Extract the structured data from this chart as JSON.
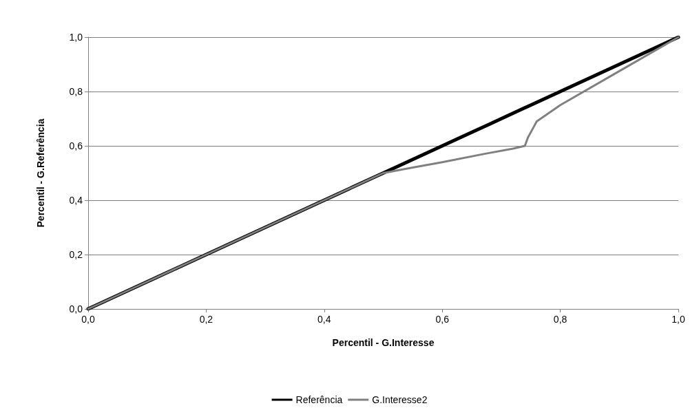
{
  "chart_data": {
    "type": "line",
    "xlabel": "Percentil - G.Interesse",
    "ylabel": "Percentil - G.Referência",
    "xlim": [
      0,
      1
    ],
    "ylim": [
      0,
      1
    ],
    "xticks": [
      {
        "value": 0,
        "label": "0,0"
      },
      {
        "value": 0.2,
        "label": "0,2"
      },
      {
        "value": 0.4,
        "label": "0,4"
      },
      {
        "value": 0.6,
        "label": "0,6"
      },
      {
        "value": 0.8,
        "label": "0,8"
      },
      {
        "value": 1,
        "label": "1,0"
      }
    ],
    "yticks": [
      {
        "value": 0,
        "label": "0,0"
      },
      {
        "value": 0.2,
        "label": "0,2"
      },
      {
        "value": 0.4,
        "label": "0,4"
      },
      {
        "value": 0.6,
        "label": "0,6"
      },
      {
        "value": 0.8,
        "label": "0,8"
      },
      {
        "value": 1,
        "label": "1,0"
      }
    ],
    "grid": "y",
    "legend": "bottom",
    "marker": "none",
    "line_style": "solid",
    "series": [
      {
        "name": "Referência",
        "color": "#000000",
        "x": [
          0,
          0.1,
          0.2,
          0.3,
          0.4,
          0.5,
          0.55,
          0.6,
          0.65,
          0.68,
          0.7,
          0.75,
          0.8,
          0.9,
          1
        ],
        "values": [
          0,
          0.1,
          0.2,
          0.3,
          0.4,
          0.5,
          0.55,
          0.6,
          0.65,
          0.68,
          0.7,
          0.75,
          0.8,
          0.9,
          1
        ]
      },
      {
        "name": "G.Interesse2",
        "color": "#808080",
        "x": [
          0,
          0.1,
          0.2,
          0.3,
          0.4,
          0.5,
          0.55,
          0.6,
          0.67,
          0.72,
          0.74,
          0.745,
          0.755,
          0.76,
          0.8,
          0.9,
          1
        ],
        "values": [
          0,
          0.1,
          0.2,
          0.3,
          0.4,
          0.5,
          0.52,
          0.54,
          0.57,
          0.59,
          0.6,
          0.63,
          0.67,
          0.69,
          0.75,
          0.875,
          1
        ]
      }
    ]
  }
}
